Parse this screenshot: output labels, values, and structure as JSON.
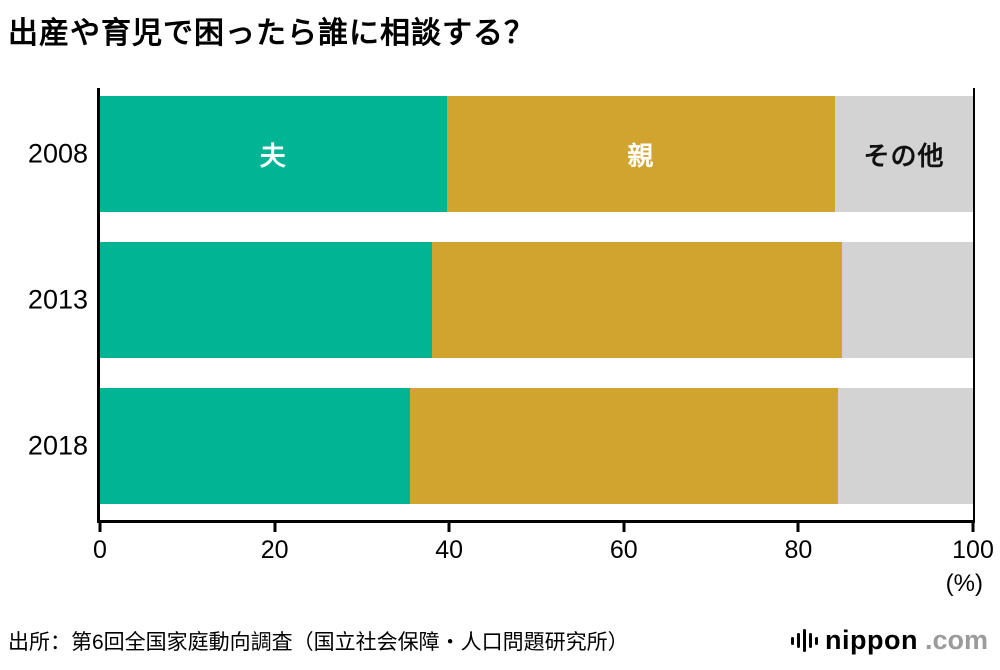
{
  "title": "出産や育児で困ったら誰に相談する？",
  "source": "出所：第6回全国家庭動向調査（国立社会保障・人口問題研究所）",
  "logo": {
    "name": "nippon",
    "tld": ".com"
  },
  "axis": {
    "unit_label": "(%)"
  },
  "chart_data": {
    "type": "bar",
    "orientation": "horizontal",
    "stacked": true,
    "title": "出産や育児で困ったら誰に相談する？",
    "categories": [
      "2008",
      "2013",
      "2018"
    ],
    "series": [
      {
        "name": "夫",
        "color": "#00b494",
        "label_color": "#ffffff",
        "values": [
          39.7,
          38.0,
          35.5
        ]
      },
      {
        "name": "親",
        "color": "#d0a42e",
        "label_color": "#ffffff",
        "values": [
          44.5,
          47.0,
          49.0
        ]
      },
      {
        "name": "その他",
        "color": "#d3d3d3",
        "label_color": "#111111",
        "values": [
          15.8,
          15.0,
          15.5
        ]
      }
    ],
    "xlim": [
      0,
      100
    ],
    "x_ticks": [
      0,
      20,
      40,
      60,
      80,
      100
    ],
    "xlabel": "(%)",
    "legend": "labels drawn inside first bar",
    "grid": false
  }
}
